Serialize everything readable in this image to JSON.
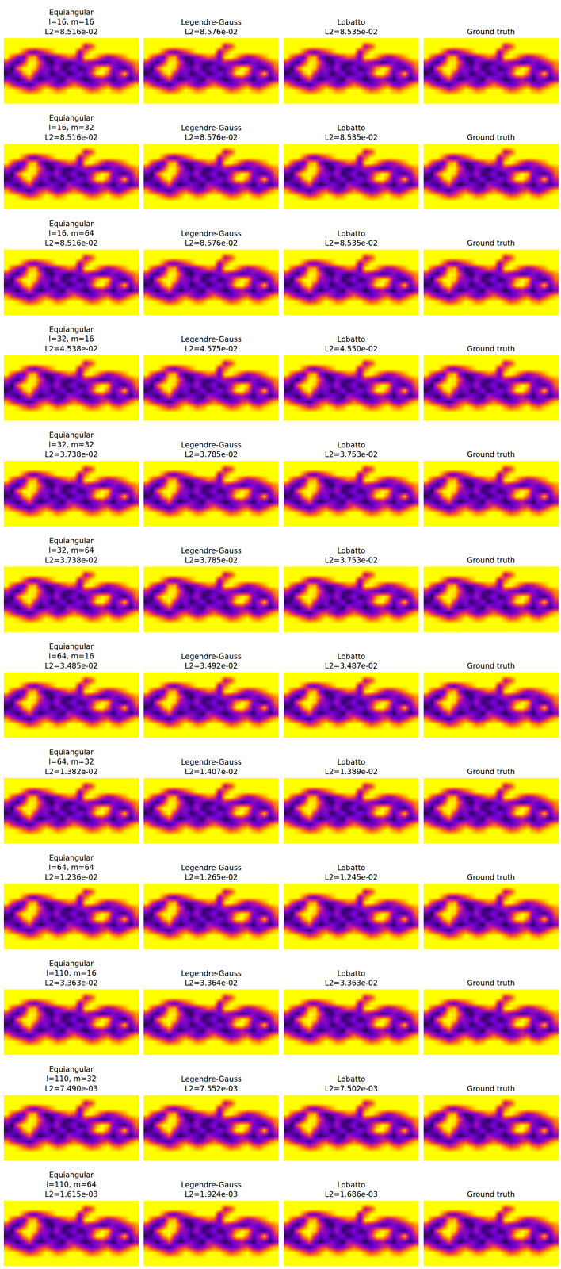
{
  "chart_data": {
    "type": "heatmap",
    "tick_labels": false,
    "colors": [
      "#000000",
      "#7000d0",
      "#d02080",
      "#ff8000",
      "#ffff00"
    ],
    "color_range": [
      0,
      1
    ],
    "field": [
      [
        1,
        1,
        1,
        1,
        1,
        1,
        1,
        1,
        1,
        1,
        1,
        1,
        1,
        1,
        1,
        1,
        1,
        1,
        1,
        1,
        1,
        1,
        1,
        1
      ],
      [
        1,
        1,
        1,
        1,
        1,
        1,
        1,
        1,
        1,
        1,
        1,
        1,
        1,
        1,
        0.4,
        0.6,
        1,
        1,
        1,
        1,
        1,
        1,
        1,
        1
      ],
      [
        1,
        1,
        1,
        0.7,
        0.3,
        0.2,
        0.4,
        0.6,
        0.8,
        1,
        1,
        1,
        1,
        0.3,
        0.7,
        1,
        1,
        1,
        1,
        1,
        1,
        1,
        1,
        1
      ],
      [
        1,
        0.6,
        0.3,
        0.2,
        0.8,
        0.9,
        0.3,
        0.1,
        0.2,
        0.3,
        0.5,
        0.7,
        0.6,
        0.2,
        1,
        1,
        0.8,
        0.5,
        0.3,
        0.4,
        0.6,
        0.8,
        1,
        1
      ],
      [
        0.5,
        0.2,
        0.1,
        0.5,
        1,
        0.95,
        0.6,
        0.2,
        0.1,
        0.3,
        0.2,
        0.1,
        0.2,
        0.3,
        0.4,
        0.3,
        0.2,
        0.1,
        0.2,
        0.3,
        0.2,
        0.4,
        0.6,
        0.8
      ],
      [
        0.2,
        0.1,
        0.7,
        1,
        1,
        0.9,
        0.4,
        0.3,
        0.2,
        0.4,
        0.1,
        0.2,
        0.3,
        0.1,
        0.2,
        0.4,
        0.8,
        1,
        0.9,
        0.3,
        0.2,
        0.1,
        0.3,
        0.7
      ],
      [
        0.1,
        0.2,
        0.3,
        0.8,
        1,
        0.5,
        0.2,
        0.3,
        0.1,
        0.2,
        0.3,
        0.1,
        0.2,
        0.3,
        0.2,
        0.5,
        1,
        1,
        0.7,
        0.2,
        0.4,
        0.9,
        0.2,
        0.5
      ],
      [
        0.3,
        0.2,
        0.1,
        0.3,
        0.6,
        0.2,
        0.1,
        0.2,
        0.3,
        0.2,
        0.1,
        0.4,
        0.3,
        0.2,
        0.1,
        0.2,
        0.3,
        0.4,
        0.2,
        0.1,
        0.3,
        0.2,
        0.1,
        0.3
      ],
      [
        0.8,
        0.5,
        0.3,
        0.2,
        0.1,
        0.3,
        0.5,
        0.6,
        0.4,
        0.2,
        0.3,
        0.5,
        0.7,
        0.5,
        0.3,
        0.2,
        0.3,
        0.5,
        0.6,
        0.3,
        0.2,
        0.4,
        0.7,
        0.9
      ],
      [
        1,
        1,
        0.9,
        0.7,
        0.5,
        0.6,
        0.8,
        1,
        0.9,
        0.7,
        0.8,
        1,
        1,
        1,
        0.8,
        0.6,
        0.7,
        0.9,
        1,
        0.8,
        0.7,
        0.9,
        1,
        1
      ],
      [
        1,
        1,
        1,
        1,
        1,
        1,
        1,
        1,
        1,
        1,
        1,
        1,
        1,
        1,
        1,
        1,
        1,
        1,
        1,
        1,
        1,
        1,
        1,
        1
      ],
      [
        1,
        1,
        1,
        1,
        1,
        1,
        1,
        1,
        1,
        1,
        1,
        1,
        1,
        1,
        1,
        1,
        1,
        1,
        1,
        1,
        1,
        1,
        1,
        1
      ]
    ],
    "rows": [
      [
        [
          "Equiangular",
          "l=16, m=16",
          "L2=8.516e-02"
        ],
        [
          "Legendre-Gauss",
          "L2=8.576e-02"
        ],
        [
          "Lobatto",
          "L2=8.535e-02"
        ],
        [
          "Ground truth"
        ]
      ],
      [
        [
          "Equiangular",
          "l=16, m=32",
          "L2=8.516e-02"
        ],
        [
          "Legendre-Gauss",
          "L2=8.576e-02"
        ],
        [
          "Lobatto",
          "L2=8.535e-02"
        ],
        [
          "Ground truth"
        ]
      ],
      [
        [
          "Equiangular",
          "l=16, m=64",
          "L2=8.516e-02"
        ],
        [
          "Legendre-Gauss",
          "L2=8.576e-02"
        ],
        [
          "Lobatto",
          "L2=8.535e-02"
        ],
        [
          "Ground truth"
        ]
      ],
      [
        [
          "Equiangular",
          "l=32, m=16",
          "L2=4.538e-02"
        ],
        [
          "Legendre-Gauss",
          "L2=4.575e-02"
        ],
        [
          "Lobatto",
          "L2=4.550e-02"
        ],
        [
          "Ground truth"
        ]
      ],
      [
        [
          "Equiangular",
          "l=32, m=32",
          "L2=3.738e-02"
        ],
        [
          "Legendre-Gauss",
          "L2=3.785e-02"
        ],
        [
          "Lobatto",
          "L2=3.753e-02"
        ],
        [
          "Ground truth"
        ]
      ],
      [
        [
          "Equiangular",
          "l=32, m=64",
          "L2=3.738e-02"
        ],
        [
          "Legendre-Gauss",
          "L2=3.785e-02"
        ],
        [
          "Lobatto",
          "L2=3.753e-02"
        ],
        [
          "Ground truth"
        ]
      ],
      [
        [
          "Equiangular",
          "l=64, m=16",
          "L2=3.485e-02"
        ],
        [
          "Legendre-Gauss",
          "L2=3.492e-02"
        ],
        [
          "Lobatto",
          "L2=3.487e-02"
        ],
        [
          "Ground truth"
        ]
      ],
      [
        [
          "Equiangular",
          "l=64, m=32",
          "L2=1.382e-02"
        ],
        [
          "Legendre-Gauss",
          "L2=1.407e-02"
        ],
        [
          "Lobatto",
          "L2=1.389e-02"
        ],
        [
          "Ground truth"
        ]
      ],
      [
        [
          "Equiangular",
          "l=64, m=64",
          "L2=1.236e-02"
        ],
        [
          "Legendre-Gauss",
          "L2=1.265e-02"
        ],
        [
          "Lobatto",
          "L2=1.245e-02"
        ],
        [
          "Ground truth"
        ]
      ],
      [
        [
          "Equiangular",
          "l=110, m=16",
          "L2=3.363e-02"
        ],
        [
          "Legendre-Gauss",
          "L2=3.364e-02"
        ],
        [
          "Lobatto",
          "L2=3.363e-02"
        ],
        [
          "Ground truth"
        ]
      ],
      [
        [
          "Equiangular",
          "l=110, m=32",
          "L2=7.490e-03"
        ],
        [
          "Legendre-Gauss",
          "L2=7.552e-03"
        ],
        [
          "Lobatto",
          "L2=7.502e-03"
        ],
        [
          "Ground truth"
        ]
      ],
      [
        [
          "Equiangular",
          "l=110, m=64",
          "L2=1.615e-03"
        ],
        [
          "Legendre-Gauss",
          "L2=1.924e-03"
        ],
        [
          "Lobatto",
          "L2=1.686e-03"
        ],
        [
          "Ground truth"
        ]
      ]
    ]
  }
}
